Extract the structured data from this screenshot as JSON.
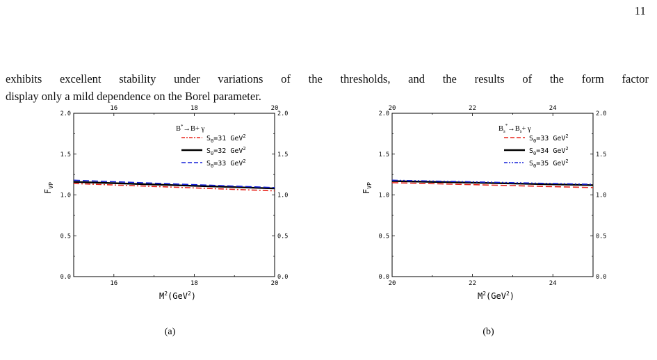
{
  "page": {
    "number": "11"
  },
  "paragraph": {
    "line1": "exhibits excellent stability under variations of the thresholds, and the results of the form factor",
    "line2": "display only a mild dependence on the Borel parameter."
  },
  "chart_data": [
    {
      "type": "line",
      "panel_label": "(a)",
      "xlabel": "M²(GeV²)",
      "ylabel": "F_VP",
      "xlim": [
        15,
        20
      ],
      "ylim": [
        0.0,
        2.0
      ],
      "x_ticks": [
        16,
        18,
        20
      ],
      "y_ticks": [
        "0.0",
        "0.5",
        "1.0",
        "1.5",
        "2.0"
      ],
      "legend_title": "B*→B+ γ",
      "legend_position": "top-right",
      "series": [
        {
          "name": "S0=31 GeV2",
          "label_main": "S",
          "label_sub": "0",
          "label_rest": "=31  GeV",
          "label_sup": "2",
          "color": "#e8251c",
          "dash": "dashdot",
          "x": [
            15,
            20
          ],
          "y": [
            1.14,
            1.05
          ]
        },
        {
          "name": "S0=32 GeV2",
          "label_main": "S",
          "label_sub": "0",
          "label_rest": "=32  GeV",
          "label_sup": "2",
          "color": "#000000",
          "dash": "solid",
          "x": [
            15,
            20
          ],
          "y": [
            1.16,
            1.08
          ]
        },
        {
          "name": "S0=33 GeV2",
          "label_main": "S",
          "label_sub": "0",
          "label_rest": "=33  GeV",
          "label_sup": "2",
          "color": "#1520d8",
          "dash": "dashed",
          "x": [
            15,
            20
          ],
          "y": [
            1.18,
            1.09
          ]
        }
      ]
    },
    {
      "type": "line",
      "panel_label": "(b)",
      "xlabel": "M²(GeV²)",
      "ylabel": "F_VP",
      "xlim": [
        20,
        25
      ],
      "ylim": [
        0.0,
        2.0
      ],
      "x_ticks": [
        20,
        22,
        24
      ],
      "y_ticks": [
        "0.0",
        "0.5",
        "1.0",
        "1.5",
        "2.0"
      ],
      "legend_title": "Bs*→Bs+ γ",
      "legend_position": "top-right",
      "series": [
        {
          "name": "S0=33 GeV2",
          "label_main": "S",
          "label_sub": "0",
          "label_rest": "=33  GeV",
          "label_sup": "2",
          "color": "#e8251c",
          "dash": "dashed",
          "x": [
            20,
            25
          ],
          "y": [
            1.15,
            1.09
          ]
        },
        {
          "name": "S0=34 GeV2",
          "label_main": "S",
          "label_sub": "0",
          "label_rest": "=34  GeV",
          "label_sup": "2",
          "color": "#000000",
          "dash": "solid",
          "x": [
            20,
            25
          ],
          "y": [
            1.17,
            1.12
          ]
        },
        {
          "name": "S0=35 GeV2",
          "label_main": "S",
          "label_sub": "0",
          "label_rest": "=35  GeV",
          "label_sup": "2",
          "color": "#1520d8",
          "dash": "dashdotdot",
          "x": [
            20,
            25
          ],
          "y": [
            1.18,
            1.13
          ]
        }
      ]
    }
  ]
}
